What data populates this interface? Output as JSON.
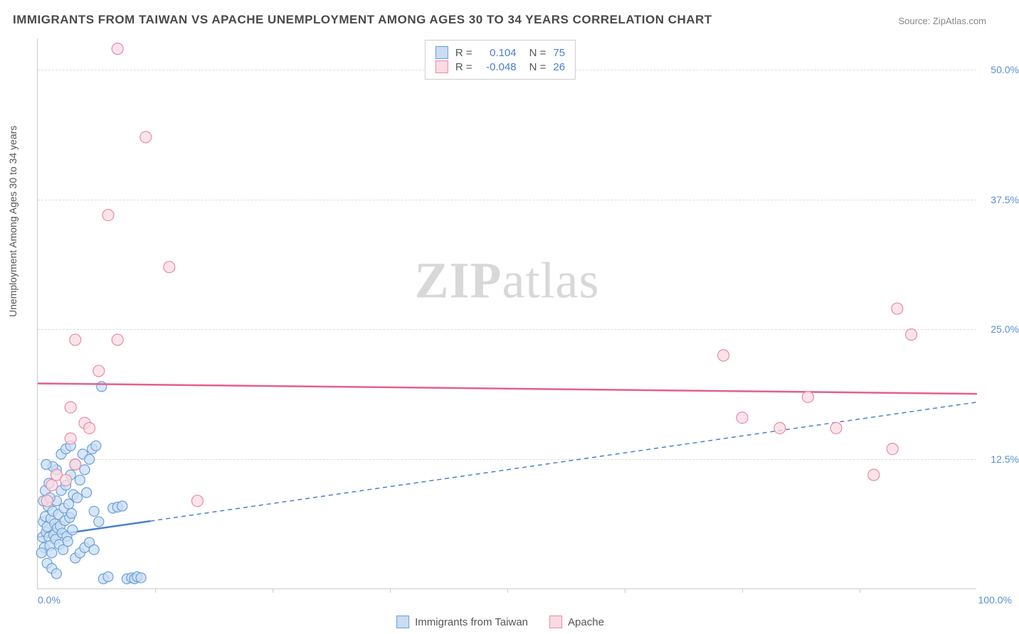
{
  "title": "IMMIGRANTS FROM TAIWAN VS APACHE UNEMPLOYMENT AMONG AGES 30 TO 34 YEARS CORRELATION CHART",
  "source": "Source: ZipAtlas.com",
  "watermark_bold": "ZIP",
  "watermark_rest": "atlas",
  "chart": {
    "type": "scatter",
    "x_axis": {
      "min": 0,
      "max": 100,
      "label_min": "0.0%",
      "label_max": "100.0%",
      "title": ""
    },
    "y_axis": {
      "min": 0,
      "max": 53,
      "ticks": [
        {
          "v": 12.5,
          "label": "12.5%"
        },
        {
          "v": 25.0,
          "label": "25.0%"
        },
        {
          "v": 37.5,
          "label": "37.5%"
        },
        {
          "v": 50.0,
          "label": "50.0%"
        }
      ],
      "title": "Unemployment Among Ages 30 to 34 years"
    },
    "grid_color": "#dddddd",
    "background": "#ffffff",
    "x_minor_ticks": [
      12.5,
      25,
      37.5,
      50,
      62.5,
      75,
      87.5
    ],
    "series": [
      {
        "name": "Immigrants from Taiwan",
        "fill": "#c9ddf3",
        "stroke": "#6a9fd8",
        "trend": {
          "x1": 0,
          "y1": 5.0,
          "x2": 100,
          "y2": 18.0,
          "solid_until_x": 12,
          "color": "#4a7fd0"
        },
        "R": "0.104",
        "N": "75",
        "marker_r": 7,
        "points": [
          [
            0.5,
            5
          ],
          [
            0.6,
            6.5
          ],
          [
            0.7,
            4
          ],
          [
            0.8,
            7
          ],
          [
            0.9,
            5.5
          ],
          [
            1.0,
            6
          ],
          [
            1.1,
            8
          ],
          [
            1.2,
            5
          ],
          [
            1.3,
            4.2
          ],
          [
            1.4,
            6.8
          ],
          [
            1.5,
            3.5
          ],
          [
            1.6,
            7.5
          ],
          [
            1.7,
            5.2
          ],
          [
            1.8,
            6.3
          ],
          [
            1.9,
            4.8
          ],
          [
            2.0,
            8.5
          ],
          [
            2.1,
            5.9
          ],
          [
            2.2,
            7.2
          ],
          [
            2.3,
            4.3
          ],
          [
            2.4,
            6.1
          ],
          [
            2.5,
            9.5
          ],
          [
            2.6,
            5.4
          ],
          [
            2.7,
            3.8
          ],
          [
            2.8,
            7.8
          ],
          [
            2.9,
            6.6
          ],
          [
            3.0,
            10
          ],
          [
            3.1,
            5.1
          ],
          [
            3.2,
            4.6
          ],
          [
            3.3,
            8.2
          ],
          [
            3.4,
            6.9
          ],
          [
            3.5,
            11
          ],
          [
            3.6,
            7.3
          ],
          [
            3.7,
            5.7
          ],
          [
            3.8,
            9.1
          ],
          [
            4.0,
            12
          ],
          [
            4.2,
            8.8
          ],
          [
            4.5,
            10.5
          ],
          [
            4.8,
            13
          ],
          [
            5.0,
            11.5
          ],
          [
            5.2,
            9.3
          ],
          [
            5.5,
            12.5
          ],
          [
            5.8,
            13.5
          ],
          [
            6.0,
            7.5
          ],
          [
            6.2,
            13.8
          ],
          [
            6.5,
            6.5
          ],
          [
            7.0,
            1.0
          ],
          [
            7.5,
            1.2
          ],
          [
            8.0,
            7.8
          ],
          [
            8.5,
            7.9
          ],
          [
            9.0,
            8.0
          ],
          [
            9.5,
            1.0
          ],
          [
            10.0,
            1.1
          ],
          [
            10.3,
            1.0
          ],
          [
            10.6,
            1.2
          ],
          [
            11.0,
            1.1
          ],
          [
            2.0,
            11.5
          ],
          [
            2.5,
            13
          ],
          [
            3.0,
            13.5
          ],
          [
            3.5,
            13.8
          ],
          [
            0.8,
            9.5
          ],
          [
            1.2,
            10.2
          ],
          [
            1.6,
            11.8
          ],
          [
            6.8,
            19.5
          ],
          [
            4.0,
            3.0
          ],
          [
            4.5,
            3.5
          ],
          [
            5.0,
            4.0
          ],
          [
            5.5,
            4.5
          ],
          [
            6.0,
            3.8
          ],
          [
            1.0,
            2.5
          ],
          [
            1.5,
            2.0
          ],
          [
            2.0,
            1.5
          ],
          [
            0.4,
            3.5
          ],
          [
            0.6,
            8.5
          ],
          [
            0.9,
            12
          ],
          [
            1.3,
            8.8
          ]
        ]
      },
      {
        "name": "Apache",
        "fill": "#fbdbe3",
        "stroke": "#e98ba5",
        "trend": {
          "x1": 0,
          "y1": 19.8,
          "x2": 100,
          "y2": 18.8,
          "solid_until_x": 100,
          "color": "#e65f8a"
        },
        "R": "-0.048",
        "N": "26",
        "marker_r": 8,
        "points": [
          [
            8.5,
            52
          ],
          [
            11.5,
            43.5
          ],
          [
            7.5,
            36
          ],
          [
            14,
            31
          ],
          [
            4,
            24
          ],
          [
            8.5,
            24
          ],
          [
            6.5,
            21
          ],
          [
            3.5,
            17.5
          ],
          [
            5,
            16
          ],
          [
            5.5,
            15.5
          ],
          [
            3.5,
            14.5
          ],
          [
            1,
            8.5
          ],
          [
            1.5,
            10
          ],
          [
            2,
            11
          ],
          [
            3,
            10.5
          ],
          [
            4,
            12
          ],
          [
            17,
            8.5
          ],
          [
            73,
            22.5
          ],
          [
            75,
            16.5
          ],
          [
            79,
            15.5
          ],
          [
            82,
            18.5
          ],
          [
            85,
            15.5
          ],
          [
            89,
            11
          ],
          [
            91,
            13.5
          ],
          [
            91.5,
            27
          ],
          [
            93,
            24.5
          ]
        ]
      }
    ]
  },
  "legend_top_labels": {
    "R": "R =",
    "N": "N ="
  },
  "legend_bottom": [
    {
      "label": "Immigrants from Taiwan",
      "fill": "#c9ddf3",
      "stroke": "#6a9fd8"
    },
    {
      "label": "Apache",
      "fill": "#fbdbe3",
      "stroke": "#e98ba5"
    }
  ]
}
